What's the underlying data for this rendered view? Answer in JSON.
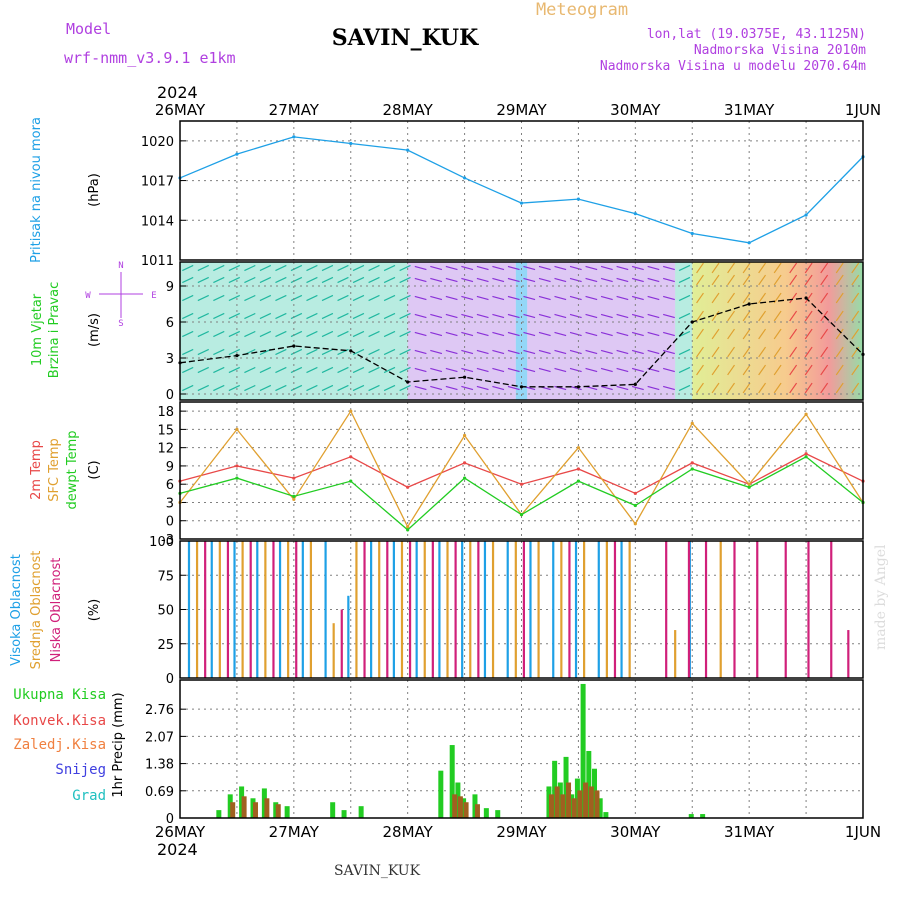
{
  "header": {
    "model_label": "Model",
    "model_name": "wrf-nmm_v3.9.1  e1km",
    "station": "SAVIN_KUK",
    "title": "Meteogram",
    "coords": "lon,lat (19.0375E, 43.1125N)",
    "elevation": "Nadmorska Visina 2010m",
    "model_elevation": "Nadmorska Visina u modelu 2070.64m",
    "year": "2024",
    "footer_station": "SAVIN_KUK",
    "credit": "made by Angel"
  },
  "colors": {
    "pressure": "#1ea0e6",
    "wind_label": "#22cc22",
    "temp_2m": "#e84848",
    "temp_sfc": "#e0a030",
    "dewpoint": "#22cc22",
    "cloud_high": "#1ea0e6",
    "cloud_mid": "#e0a030",
    "cloud_low": "#d0207a",
    "precip_total": "#22cc22",
    "precip_conv": "#e84848",
    "precip_frozen": "#f08040",
    "snow": "#4040e0",
    "grad": "#20c0c0",
    "compass": "#b040e0",
    "model_text": "#b040e0",
    "meta_text": "#b040e0",
    "title_text": "#e8b870"
  },
  "time_axis": {
    "labels": [
      "26MAY",
      "27MAY",
      "28MAY",
      "29MAY",
      "30MAY",
      "31MAY",
      "1JUN"
    ]
  },
  "compass": {
    "n": "N",
    "s": "S",
    "e": "E",
    "w": "W"
  },
  "chart_data": [
    {
      "type": "line",
      "panel": "pressure",
      "ylabel_colored": "Pritisak na nivou mora",
      "unit": "(hPa)",
      "ylim": [
        1011,
        1021.5
      ],
      "yticks": [
        1011,
        1014,
        1017,
        1020
      ],
      "grid": true,
      "series": [
        {
          "name": "Pritisak na nivou mora",
          "x_days": [
            0,
            0.5,
            1,
            1.5,
            2,
            2.5,
            3,
            3.5,
            4,
            4.5,
            5,
            5.5,
            6
          ],
          "values": [
            1017.2,
            1019.0,
            1020.3,
            1019.8,
            1019.3,
            1017.2,
            1015.3,
            1015.6,
            1014.5,
            1013.0,
            1012.3,
            1014.4,
            1018.8
          ]
        }
      ]
    },
    {
      "type": "line",
      "panel": "wind",
      "ylabel_colored_1": "10m Vjetar",
      "ylabel_colored_2": "Brzina i Pravac",
      "unit": "(m/s)",
      "ylim": [
        -0.5,
        11
      ],
      "yticks": [
        0,
        3,
        6,
        9
      ],
      "grid": true,
      "series": [
        {
          "name": "10m Vjetar Brzina i Pravac",
          "x_days": [
            0,
            0.5,
            1,
            1.5,
            2,
            2.5,
            3,
            3.5,
            4,
            4.5,
            5,
            5.5,
            6
          ],
          "values": [
            2.6,
            3.2,
            4.0,
            3.6,
            1.0,
            1.4,
            0.6,
            0.6,
            0.8,
            6.0,
            7.5,
            8.0,
            3.3
          ]
        }
      ]
    },
    {
      "type": "line",
      "panel": "temperature",
      "ylabel_1": "2m Temp",
      "ylabel_2": "SFC Temp",
      "ylabel_3": "dewpt Temp",
      "unit": "(C)",
      "ylim": [
        -3,
        19.5
      ],
      "yticks": [
        -3,
        0,
        3,
        6,
        9,
        12,
        15,
        18
      ],
      "grid": true,
      "series": [
        {
          "name": "2m Temp",
          "x_days": [
            0,
            0.5,
            1,
            1.5,
            2,
            2.5,
            3,
            3.5,
            4,
            4.5,
            5,
            5.5,
            6
          ],
          "values": [
            6.5,
            9.0,
            7.0,
            10.5,
            5.5,
            9.5,
            6.0,
            8.5,
            4.5,
            9.5,
            6.0,
            11.0,
            6.5
          ]
        },
        {
          "name": "SFC Temp",
          "x_days": [
            0,
            0.5,
            1,
            1.5,
            2,
            2.5,
            3,
            3.5,
            4,
            4.5,
            5,
            5.5,
            6
          ],
          "values": [
            3.0,
            15.0,
            3.5,
            18.0,
            -1.0,
            14.0,
            1.0,
            12.0,
            -0.5,
            16.0,
            6.0,
            17.5,
            3.0
          ]
        },
        {
          "name": "dewpt Temp",
          "x_days": [
            0,
            0.5,
            1,
            1.5,
            2,
            2.5,
            3,
            3.5,
            4,
            4.5,
            5,
            5.5,
            6
          ],
          "values": [
            4.5,
            7.0,
            4.0,
            6.5,
            -1.5,
            7.0,
            1.0,
            6.5,
            2.5,
            8.5,
            5.5,
            10.5,
            3.0
          ]
        }
      ]
    },
    {
      "type": "bar",
      "panel": "clouds",
      "ylabel_1": "Visoka Oblacnost",
      "ylabel_2": "Srednja Oblacnost",
      "ylabel_3": "Niska Oblacnost",
      "unit": "(%)",
      "ylim": [
        0,
        100
      ],
      "yticks": [
        0,
        25,
        50,
        75,
        100
      ],
      "grid": true,
      "series": [
        {
          "name": "Visoka Oblacnost",
          "x_days": [
            0.1,
            0.3,
            0.5,
            0.7,
            0.9,
            1.1,
            1.3,
            1.5,
            1.7,
            1.9,
            2.1,
            2.3,
            2.5,
            2.7,
            2.9,
            3.1,
            3.3,
            3.5,
            3.7,
            3.9,
            4.1,
            4.3,
            4.5,
            4.7
          ],
          "values": [
            100,
            100,
            100,
            100,
            100,
            100,
            100,
            60,
            100,
            100,
            100,
            100,
            100,
            100,
            100,
            100,
            100,
            100,
            100,
            100,
            0,
            0,
            100,
            0
          ]
        },
        {
          "name": "Srednja Oblacnost",
          "x_days": [
            0.15,
            0.35,
            0.55,
            0.75,
            0.95,
            1.15,
            1.35,
            1.55,
            1.75,
            1.95,
            2.15,
            2.35,
            2.55,
            2.75,
            2.95,
            3.15,
            3.35,
            3.55,
            3.75,
            3.95,
            4.35,
            4.75
          ],
          "values": [
            100,
            100,
            100,
            100,
            100,
            100,
            40,
            100,
            100,
            100,
            100,
            100,
            100,
            100,
            100,
            100,
            100,
            100,
            100,
            100,
            35,
            100
          ]
        },
        {
          "name": "Niska Oblacnost",
          "x_days": [
            0.2,
            0.4,
            0.6,
            0.8,
            1.0,
            1.4,
            1.6,
            1.8,
            2.0,
            2.2,
            2.4,
            2.6,
            3.0,
            3.4,
            3.8,
            4.25,
            4.45,
            4.6,
            4.85,
            5.05,
            5.3,
            5.5,
            5.7,
            5.85
          ],
          "values": [
            100,
            100,
            100,
            100,
            100,
            50,
            100,
            100,
            100,
            100,
            100,
            100,
            100,
            100,
            100,
            100,
            100,
            100,
            100,
            100,
            100,
            100,
            100,
            35
          ]
        }
      ]
    },
    {
      "type": "bar",
      "panel": "precipitation",
      "ylabel": "1hr Precip",
      "unit": "(mm)",
      "ylim": [
        0,
        3.5
      ],
      "yticks": [
        0,
        0.69,
        1.38,
        2.07,
        2.76
      ],
      "grid": true,
      "legend": [
        "Ukupna Kisa",
        "Konvek.Kisa",
        "Zaledj.Kisa",
        "Snijeg",
        "Grad"
      ],
      "series": [
        {
          "name": "Ukupna Kisa",
          "x_days": [
            0.35,
            0.45,
            0.55,
            0.65,
            0.75,
            0.85,
            0.95,
            1.35,
            1.45,
            1.6,
            2.3,
            2.4,
            2.45,
            2.5,
            2.6,
            2.7,
            2.8,
            3.25,
            3.3,
            3.35,
            3.4,
            3.45,
            3.5,
            3.55,
            3.6,
            3.65,
            3.7,
            3.75,
            4.5,
            4.6
          ],
          "values": [
            0.2,
            0.6,
            0.8,
            0.5,
            0.75,
            0.4,
            0.3,
            0.4,
            0.2,
            0.3,
            1.2,
            1.85,
            0.9,
            0.5,
            0.6,
            0.25,
            0.2,
            0.8,
            1.45,
            0.9,
            1.55,
            0.6,
            1.0,
            3.4,
            1.7,
            1.25,
            0.5,
            0.15,
            0.1,
            0.1
          ]
        },
        {
          "name": "Konvek.Kisa",
          "x_days": [
            0.45,
            0.55,
            0.65,
            0.75,
            0.85,
            2.4,
            2.45,
            2.5,
            2.6,
            3.25,
            3.3,
            3.35,
            3.4,
            3.45,
            3.5,
            3.55,
            3.6,
            3.65
          ],
          "values": [
            0.4,
            0.55,
            0.4,
            0.5,
            0.35,
            0.6,
            0.55,
            0.4,
            0.35,
            0.6,
            0.8,
            0.6,
            0.9,
            0.5,
            0.7,
            0.9,
            0.8,
            0.7
          ]
        }
      ]
    }
  ]
}
